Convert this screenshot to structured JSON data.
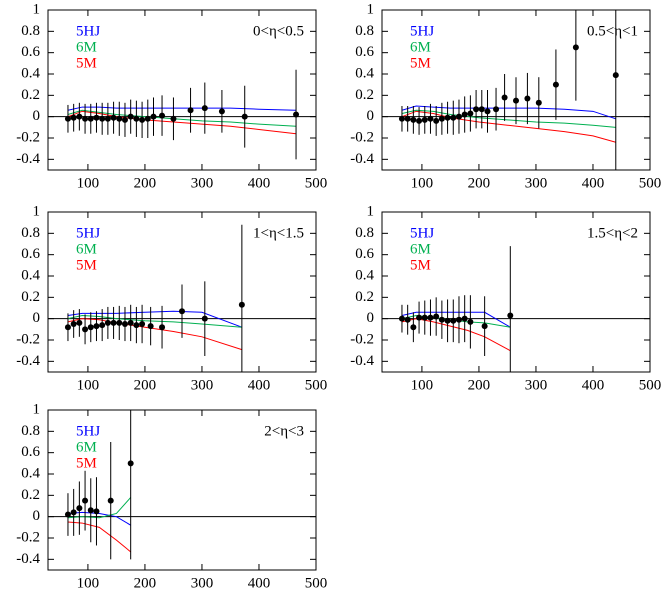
{
  "chart_data": [
    {
      "type": "scatter",
      "annotation": "0<η<0.5",
      "xlim": [
        30,
        500
      ],
      "ylim": [
        -0.5,
        1
      ],
      "xticks": [
        100,
        200,
        300,
        400,
        500
      ],
      "yticks": [
        1,
        0.8,
        0.6,
        0.4,
        0.2,
        0,
        -0.2,
        -0.4
      ],
      "points": {
        "color": "#000000",
        "x": [
          65,
          75,
          85,
          95,
          105,
          115,
          125,
          135,
          145,
          155,
          165,
          175,
          185,
          195,
          205,
          215,
          230,
          250,
          280,
          305,
          335,
          375,
          465
        ],
        "values": [
          -0.02,
          -0.01,
          0.0,
          -0.02,
          -0.02,
          -0.01,
          -0.02,
          -0.02,
          -0.01,
          -0.02,
          -0.03,
          0.0,
          -0.02,
          -0.03,
          -0.02,
          0.0,
          0.01,
          -0.02,
          0.06,
          0.08,
          0.05,
          0.0,
          0.02
        ],
        "errors": [
          0.13,
          0.13,
          0.13,
          0.14,
          0.14,
          0.14,
          0.15,
          0.15,
          0.15,
          0.16,
          0.16,
          0.16,
          0.17,
          0.17,
          0.18,
          0.18,
          0.19,
          0.2,
          0.21,
          0.24,
          0.2,
          0.29,
          0.42
        ]
      },
      "series": [
        {
          "name": "5HJ",
          "color": "#0000ff",
          "x": [
            65,
            90,
            120,
            150,
            200,
            250,
            300,
            350,
            400,
            465
          ],
          "values": [
            0.06,
            0.09,
            0.09,
            0.08,
            0.08,
            0.08,
            0.08,
            0.08,
            0.07,
            0.06
          ]
        },
        {
          "name": "6M",
          "color": "#00b050",
          "x": [
            65,
            90,
            120,
            150,
            200,
            250,
            300,
            350,
            400,
            465
          ],
          "values": [
            0.02,
            0.06,
            0.04,
            0.02,
            0.0,
            -0.02,
            -0.04,
            -0.05,
            -0.07,
            -0.09
          ]
        },
        {
          "name": "5M",
          "color": "#ff0000",
          "x": [
            65,
            90,
            120,
            150,
            200,
            250,
            300,
            350,
            400,
            465
          ],
          "values": [
            0.0,
            0.05,
            0.03,
            0.0,
            -0.03,
            -0.05,
            -0.07,
            -0.09,
            -0.12,
            -0.16
          ]
        }
      ]
    },
    {
      "type": "scatter",
      "annotation": "0.5<η<1",
      "xlim": [
        30,
        500
      ],
      "ylim": [
        -0.5,
        1
      ],
      "xticks": [
        100,
        200,
        300,
        400,
        500
      ],
      "yticks": [
        1,
        0.8,
        0.6,
        0.4,
        0.2,
        0,
        -0.2,
        -0.4
      ],
      "points": {
        "color": "#000000",
        "x": [
          65,
          75,
          85,
          95,
          105,
          115,
          125,
          135,
          145,
          155,
          165,
          175,
          185,
          195,
          205,
          215,
          230,
          245,
          265,
          285,
          305,
          335,
          370,
          440
        ],
        "values": [
          -0.02,
          -0.02,
          -0.03,
          -0.04,
          -0.03,
          -0.02,
          -0.04,
          -0.02,
          -0.01,
          -0.01,
          0.0,
          0.02,
          0.03,
          0.07,
          0.07,
          0.05,
          0.07,
          0.18,
          0.15,
          0.17,
          0.13,
          0.3,
          0.65,
          0.39
        ],
        "errors": [
          0.12,
          0.12,
          0.13,
          0.13,
          0.13,
          0.14,
          0.14,
          0.15,
          0.15,
          0.16,
          0.16,
          0.17,
          0.17,
          0.18,
          0.18,
          0.2,
          0.2,
          0.22,
          0.22,
          0.24,
          0.24,
          0.33,
          0.5,
          0.9
        ]
      },
      "series": [
        {
          "name": "5HJ",
          "color": "#0000ff",
          "x": [
            65,
            90,
            120,
            150,
            200,
            250,
            300,
            350,
            400,
            440
          ],
          "values": [
            0.06,
            0.1,
            0.09,
            0.08,
            0.08,
            0.08,
            0.08,
            0.07,
            0.05,
            -0.02
          ]
        },
        {
          "name": "6M",
          "color": "#00b050",
          "x": [
            65,
            90,
            120,
            150,
            200,
            250,
            300,
            350,
            400,
            440
          ],
          "values": [
            0.03,
            0.06,
            0.05,
            0.02,
            -0.01,
            -0.03,
            -0.05,
            -0.06,
            -0.08,
            -0.1
          ]
        },
        {
          "name": "5M",
          "color": "#ff0000",
          "x": [
            65,
            90,
            120,
            150,
            200,
            250,
            300,
            350,
            400,
            440
          ],
          "values": [
            0.0,
            0.05,
            0.03,
            -0.01,
            -0.05,
            -0.08,
            -0.11,
            -0.14,
            -0.18,
            -0.24
          ]
        }
      ]
    },
    {
      "type": "scatter",
      "annotation": "1<η<1.5",
      "xlim": [
        30,
        500
      ],
      "ylim": [
        -0.5,
        1
      ],
      "xticks": [
        100,
        200,
        300,
        400,
        500
      ],
      "yticks": [
        1,
        0.8,
        0.6,
        0.4,
        0.2,
        0,
        -0.2,
        -0.4
      ],
      "points": {
        "color": "#000000",
        "x": [
          65,
          75,
          85,
          95,
          105,
          115,
          125,
          135,
          145,
          155,
          165,
          175,
          185,
          195,
          210,
          230,
          265,
          305,
          370
        ],
        "values": [
          -0.08,
          -0.05,
          -0.04,
          -0.1,
          -0.08,
          -0.07,
          -0.06,
          -0.04,
          -0.04,
          -0.04,
          -0.05,
          -0.04,
          -0.06,
          -0.05,
          -0.07,
          -0.08,
          0.07,
          0.0,
          0.13
        ],
        "errors": [
          0.13,
          0.13,
          0.13,
          0.14,
          0.14,
          0.14,
          0.15,
          0.15,
          0.15,
          0.16,
          0.16,
          0.17,
          0.17,
          0.18,
          0.18,
          0.2,
          0.25,
          0.35,
          0.75
        ]
      },
      "series": [
        {
          "name": "5HJ",
          "color": "#0000ff",
          "x": [
            65,
            90,
            120,
            150,
            200,
            250,
            300,
            370
          ],
          "values": [
            0.03,
            0.05,
            0.05,
            0.05,
            0.06,
            0.07,
            0.06,
            -0.08
          ]
        },
        {
          "name": "6M",
          "color": "#00b050",
          "x": [
            65,
            90,
            120,
            150,
            200,
            250,
            300,
            370
          ],
          "values": [
            0.0,
            0.03,
            0.02,
            0.0,
            -0.02,
            -0.03,
            -0.05,
            -0.08
          ]
        },
        {
          "name": "5M",
          "color": "#ff0000",
          "x": [
            65,
            90,
            120,
            150,
            200,
            250,
            300,
            370
          ],
          "values": [
            -0.03,
            0.0,
            -0.01,
            -0.04,
            -0.08,
            -0.12,
            -0.17,
            -0.29
          ]
        }
      ]
    },
    {
      "type": "scatter",
      "annotation": "1.5<η<2",
      "xlim": [
        30,
        500
      ],
      "ylim": [
        -0.5,
        1
      ],
      "xticks": [
        100,
        200,
        300,
        400,
        500
      ],
      "yticks": [
        1,
        0.8,
        0.6,
        0.4,
        0.2,
        0,
        -0.2,
        -0.4
      ],
      "points": {
        "color": "#000000",
        "x": [
          65,
          75,
          85,
          95,
          105,
          115,
          125,
          135,
          145,
          155,
          165,
          175,
          185,
          210,
          255
        ],
        "values": [
          0.0,
          -0.01,
          -0.08,
          0.01,
          0.01,
          0.01,
          0.02,
          -0.01,
          -0.02,
          -0.02,
          -0.01,
          0.0,
          -0.03,
          -0.07,
          0.03
        ],
        "errors": [
          0.13,
          0.14,
          0.14,
          0.15,
          0.16,
          0.17,
          0.18,
          0.18,
          0.2,
          0.2,
          0.22,
          0.22,
          0.25,
          0.28,
          0.65
        ]
      },
      "series": [
        {
          "name": "5HJ",
          "color": "#0000ff",
          "x": [
            65,
            90,
            120,
            150,
            180,
            210,
            255
          ],
          "values": [
            0.03,
            0.06,
            0.06,
            0.06,
            0.06,
            0.06,
            -0.08
          ]
        },
        {
          "name": "6M",
          "color": "#00b050",
          "x": [
            65,
            90,
            120,
            150,
            180,
            210,
            255
          ],
          "values": [
            0.0,
            0.03,
            0.01,
            -0.01,
            -0.03,
            -0.04,
            -0.08
          ]
        },
        {
          "name": "5M",
          "color": "#ff0000",
          "x": [
            65,
            90,
            120,
            150,
            180,
            210,
            255
          ],
          "values": [
            -0.03,
            0.0,
            -0.03,
            -0.07,
            -0.11,
            -0.17,
            -0.3
          ]
        }
      ]
    },
    {
      "type": "scatter",
      "annotation": "2<η<3",
      "xlim": [
        30,
        500
      ],
      "ylim": [
        -0.5,
        1
      ],
      "xticks": [
        100,
        200,
        300,
        400,
        500
      ],
      "yticks": [
        1,
        0.8,
        0.6,
        0.4,
        0.2,
        0,
        -0.2,
        -0.4
      ],
      "points": {
        "color": "#000000",
        "x": [
          65,
          75,
          85,
          95,
          105,
          115,
          140,
          175
        ],
        "values": [
          0.02,
          0.04,
          0.08,
          0.15,
          0.06,
          0.05,
          0.15,
          0.5
        ],
        "errors": [
          0.2,
          0.22,
          0.25,
          0.28,
          0.3,
          0.32,
          0.55,
          0.9
        ]
      },
      "series": [
        {
          "name": "5HJ",
          "color": "#0000ff",
          "x": [
            65,
            90,
            120,
            150,
            175
          ],
          "values": [
            0.03,
            0.04,
            0.03,
            0.0,
            -0.08
          ]
        },
        {
          "name": "6M",
          "color": "#00b050",
          "x": [
            65,
            90,
            120,
            150,
            175
          ],
          "values": [
            -0.01,
            0.0,
            -0.01,
            0.03,
            0.18
          ]
        },
        {
          "name": "5M",
          "color": "#ff0000",
          "x": [
            65,
            90,
            120,
            150,
            175
          ],
          "values": [
            -0.05,
            -0.06,
            -0.1,
            -0.22,
            -0.33
          ]
        }
      ]
    }
  ]
}
